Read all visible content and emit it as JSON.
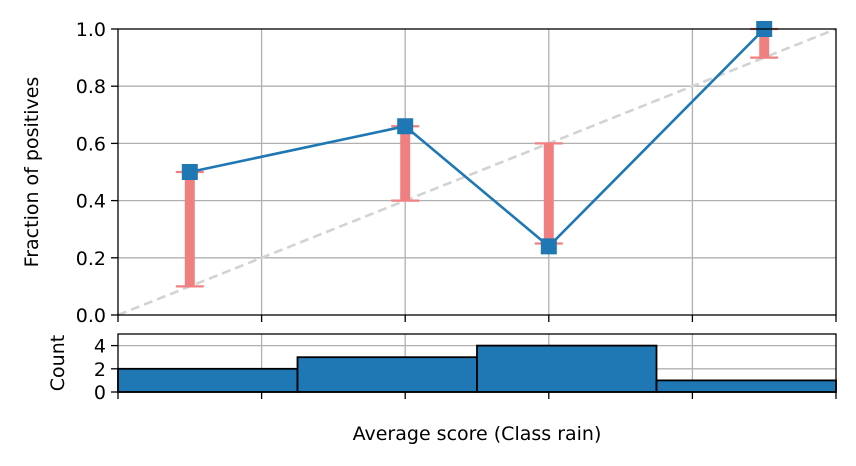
{
  "chart_data": [
    {
      "type": "line",
      "role": "calibration-curve",
      "xlabel": "",
      "ylabel": "Fraction of positives",
      "xlim": [
        0.0,
        1.0
      ],
      "ylim": [
        0.0,
        1.0
      ],
      "yticks": [
        "0.0",
        "0.2",
        "0.4",
        "0.6",
        "0.8",
        "1.0"
      ],
      "xticks": [
        0.0,
        0.2,
        0.4,
        0.6,
        0.8,
        1.0
      ],
      "grid": true,
      "points": [
        {
          "x": 0.1,
          "y": 0.5,
          "err_low": 0.1,
          "err_high": 0.5
        },
        {
          "x": 0.4,
          "y": 0.66,
          "err_low": 0.4,
          "err_high": 0.66
        },
        {
          "x": 0.6,
          "y": 0.24,
          "err_low": 0.25,
          "err_high": 0.6
        },
        {
          "x": 0.9,
          "y": 1.0,
          "err_low": 0.9,
          "err_high": 1.0
        }
      ],
      "reference_line": {
        "x": [
          0.0,
          1.0
        ],
        "y": [
          0.0,
          1.0
        ]
      },
      "colors": {
        "line": "#1f77b4",
        "errorbar": "#f08080",
        "reference": "#d3d3d3",
        "grid": "#b0b0b0"
      }
    },
    {
      "type": "bar",
      "role": "histogram",
      "xlabel": "Average score (Class rain)",
      "ylabel": "Count",
      "xlim": [
        0.0,
        1.0
      ],
      "ylim": [
        0,
        5
      ],
      "yticks": [
        "0",
        "2",
        "4"
      ],
      "grid": true,
      "bins": [
        {
          "start": 0.0,
          "end": 0.25,
          "count": 2
        },
        {
          "start": 0.25,
          "end": 0.5,
          "count": 3
        },
        {
          "start": 0.5,
          "end": 0.75,
          "count": 4
        },
        {
          "start": 0.75,
          "end": 1.0,
          "count": 1
        }
      ],
      "colors": {
        "bar": "#1f77b4",
        "edge": "#000000",
        "grid": "#b0b0b0"
      }
    }
  ]
}
